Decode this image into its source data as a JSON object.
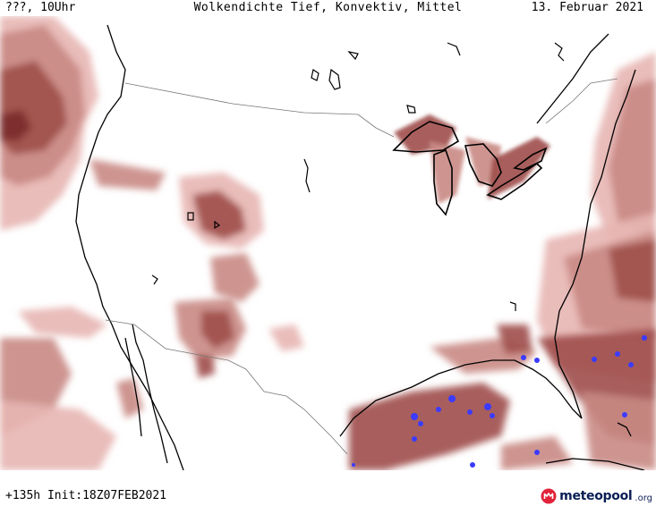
{
  "header": {
    "time_label": "???, 10Uhr",
    "title": "Wolkendichte  Tief, Konvektiv, Mittel",
    "date": "13. Februar 2021"
  },
  "footer": {
    "run_info": "+135h Init:18Z07FEB2021",
    "logo_word": "meteopool",
    "logo_tld": ".org"
  },
  "legend_colors": {
    "light_cloud": "#e7b6b2",
    "medium_cloud": "#c98a84",
    "dense_cloud": "#9e4e4a",
    "very_dense_cloud": "#7a2a2a",
    "convective": "#3b3bff",
    "coastline": "#000000",
    "border": "#777777"
  }
}
